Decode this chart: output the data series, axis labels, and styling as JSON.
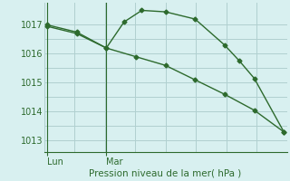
{
  "line1_x": [
    0,
    0.5,
    1.0,
    1.5,
    2.0,
    2.5,
    3.0,
    3.5,
    4.0
  ],
  "line1_y": [
    1017.0,
    1016.75,
    1016.2,
    1015.9,
    1015.6,
    1015.1,
    1014.6,
    1014.05,
    1013.3
  ],
  "line2_x": [
    0,
    0.5,
    1.0,
    1.3,
    1.6,
    2.0,
    2.5,
    3.0,
    3.25,
    3.5,
    4.0
  ],
  "line2_y": [
    1016.95,
    1016.7,
    1016.2,
    1017.1,
    1017.5,
    1017.45,
    1017.2,
    1016.3,
    1015.75,
    1015.15,
    1013.3
  ],
  "line_color": "#2d6a2d",
  "bg_color": "#d8f0f0",
  "grid_color": "#b0d0d0",
  "xlabel": "Pression niveau de la mer( hPa )",
  "yticks": [
    1013,
    1014,
    1015,
    1016,
    1017
  ],
  "xtick_positions": [
    0,
    1.0
  ],
  "xtick_labels": [
    "Lun",
    "Mar"
  ],
  "xlim": [
    -0.05,
    4.05
  ],
  "ylim": [
    1012.6,
    1017.75
  ],
  "marker": "D",
  "markersize": 2.5,
  "linewidth": 1.0,
  "grid_nx": 8,
  "grid_ny": 5
}
